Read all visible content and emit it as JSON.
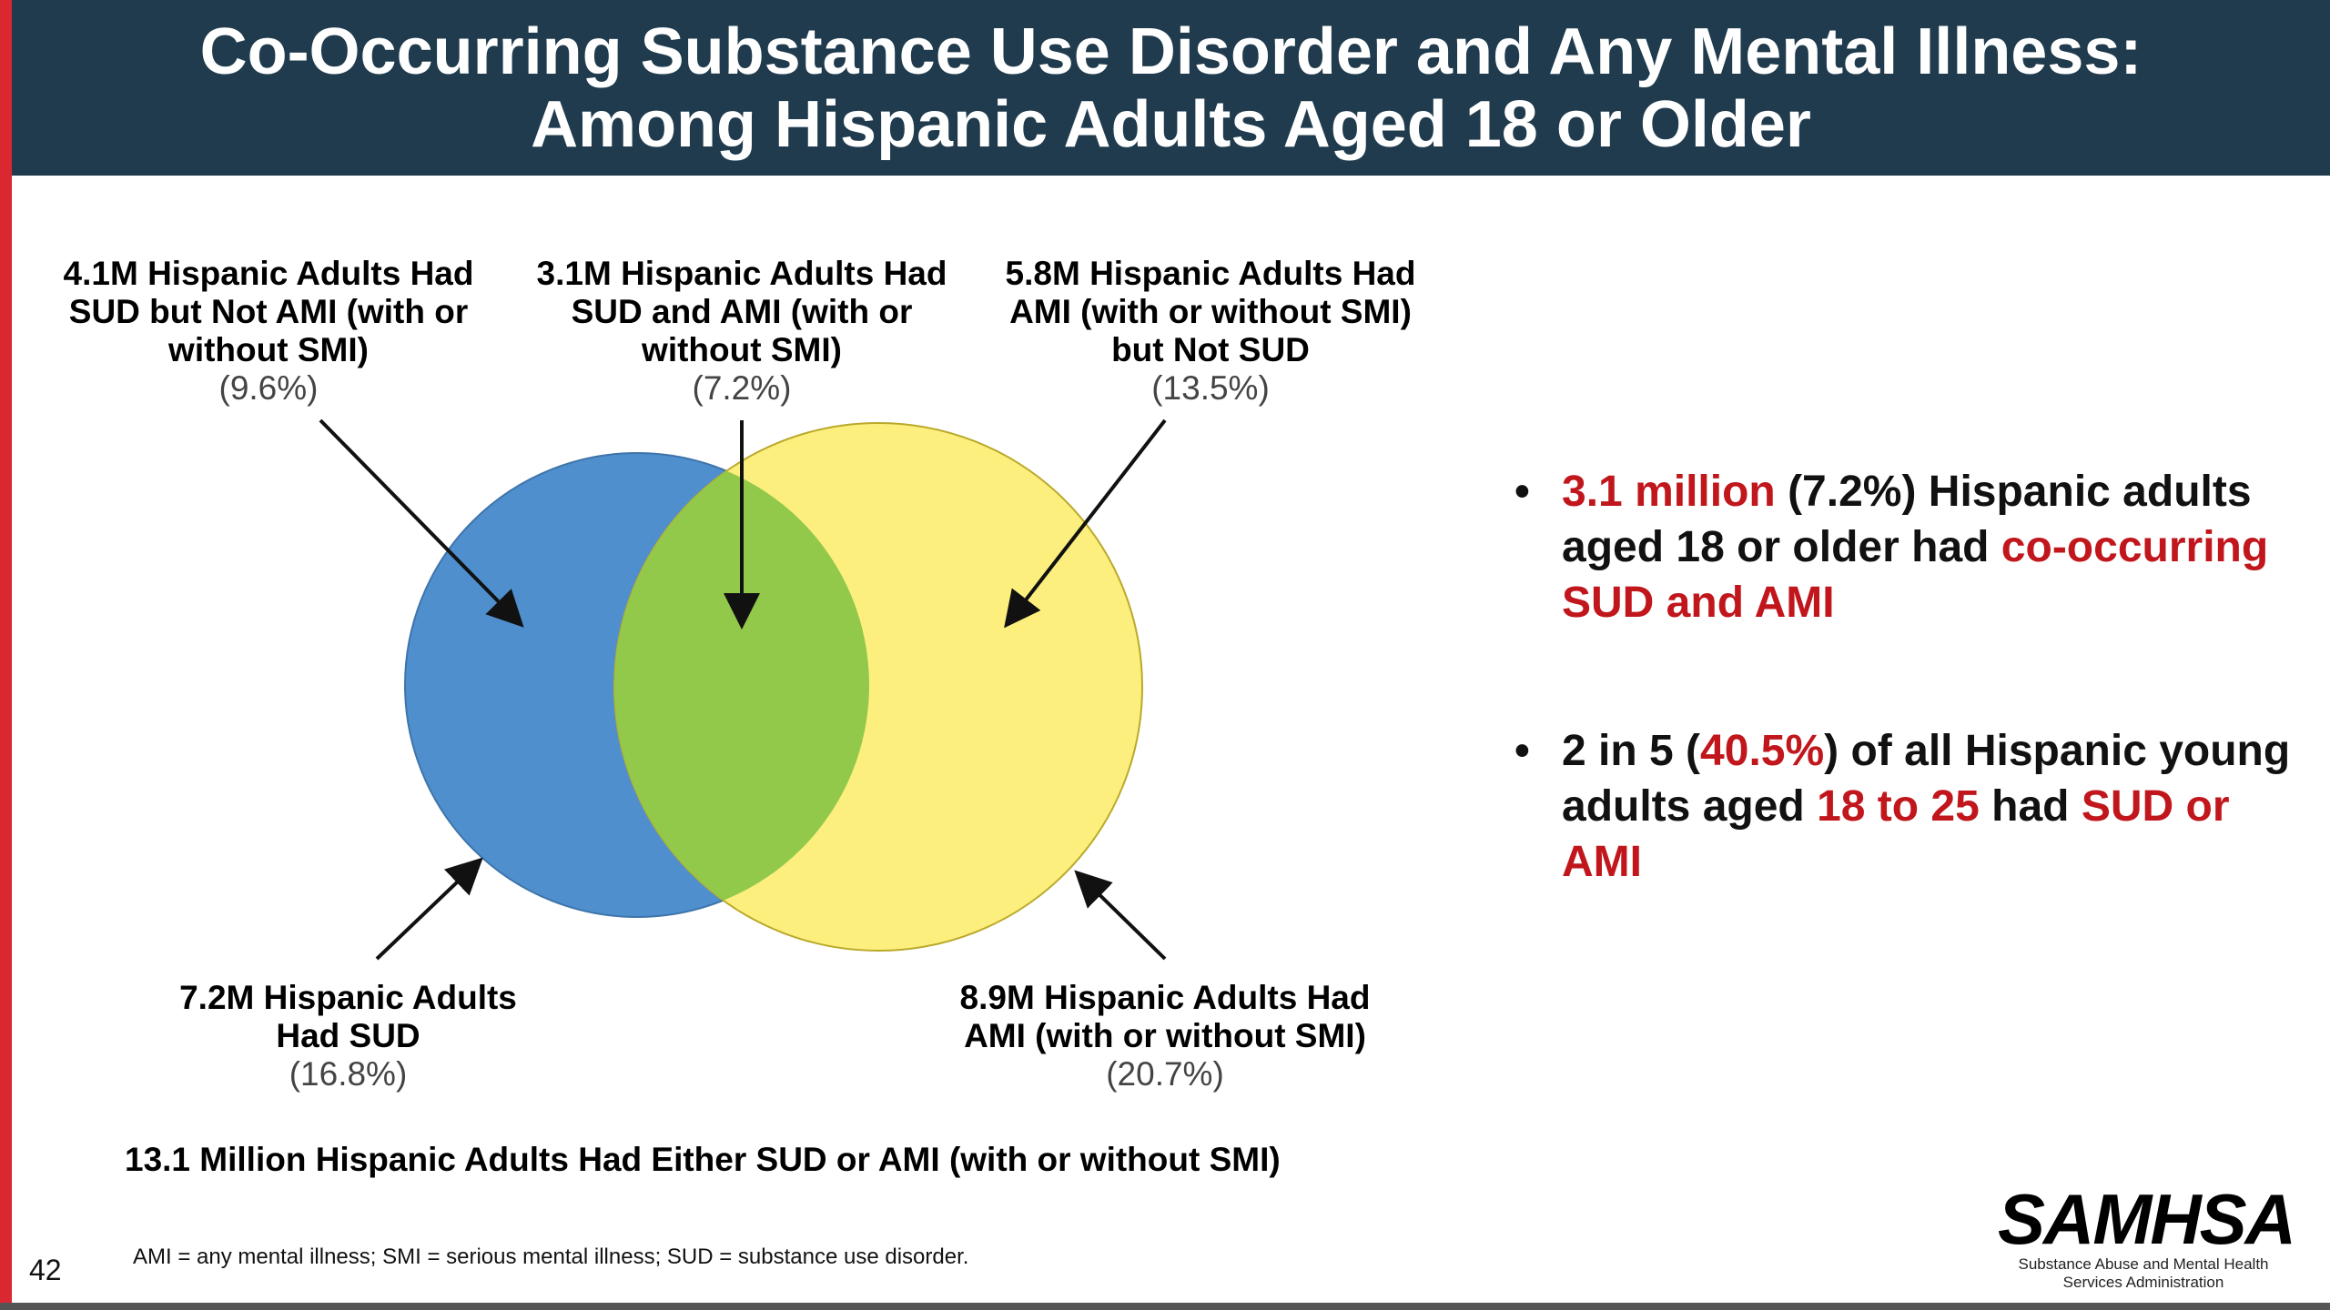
{
  "header": {
    "title_line1": "Co-Occurring Substance Use Disorder and Any Mental Illness:",
    "title_line2": "Among Hispanic Adults Aged 18 or Older"
  },
  "callouts": {
    "sud_not_ami": {
      "text": "4.1M Hispanic Adults Had\nSUD but Not AMI (with or\nwithout SMI)",
      "pct": "(9.6%)"
    },
    "sud_and_ami": {
      "text": "3.1M Hispanic Adults Had\nSUD and AMI (with or\nwithout SMI)",
      "pct": "(7.2%)"
    },
    "ami_not_sud": {
      "text": "5.8M Hispanic Adults Had\nAMI (with or without SMI)\nbut Not SUD",
      "pct": "(13.5%)"
    },
    "had_sud": {
      "text": "7.2M Hispanic Adults\nHad SUD",
      "pct": "(16.8%)"
    },
    "had_ami": {
      "text": "8.9M Hispanic Adults Had\nAMI (with or without SMI)",
      "pct": "(20.7%)"
    }
  },
  "colors": {
    "sud_circle": "#4f8fce",
    "ami_circle": "#fdef7e",
    "overlap": "#92c94a",
    "header_bg": "#1f3b4d",
    "accent_red": "#c0161c"
  },
  "bullets": [
    {
      "b1": "3.1 million",
      "b2": " (7.2%) Hispanic adults aged 18 or older had ",
      "b3": "co-occurring SUD and AMI"
    },
    {
      "b1": "2 in 5 (",
      "b2": "40.5%",
      "b3": ") of all Hispanic young adults aged ",
      "b4": "18 to 25",
      "b5": " had ",
      "b6": "SUD or AMI"
    }
  ],
  "bullet_symbol": "•",
  "summary": "13.1 Million Hispanic Adults Had Either SUD or AMI (with or without SMI)",
  "footnote": "AMI = any mental illness; SMI = serious mental illness; SUD = substance use disorder.",
  "slide_number": "42",
  "logo": {
    "name": "SAMHSA",
    "sub1": "Substance Abuse and Mental Health",
    "sub2": "Services Administration"
  }
}
